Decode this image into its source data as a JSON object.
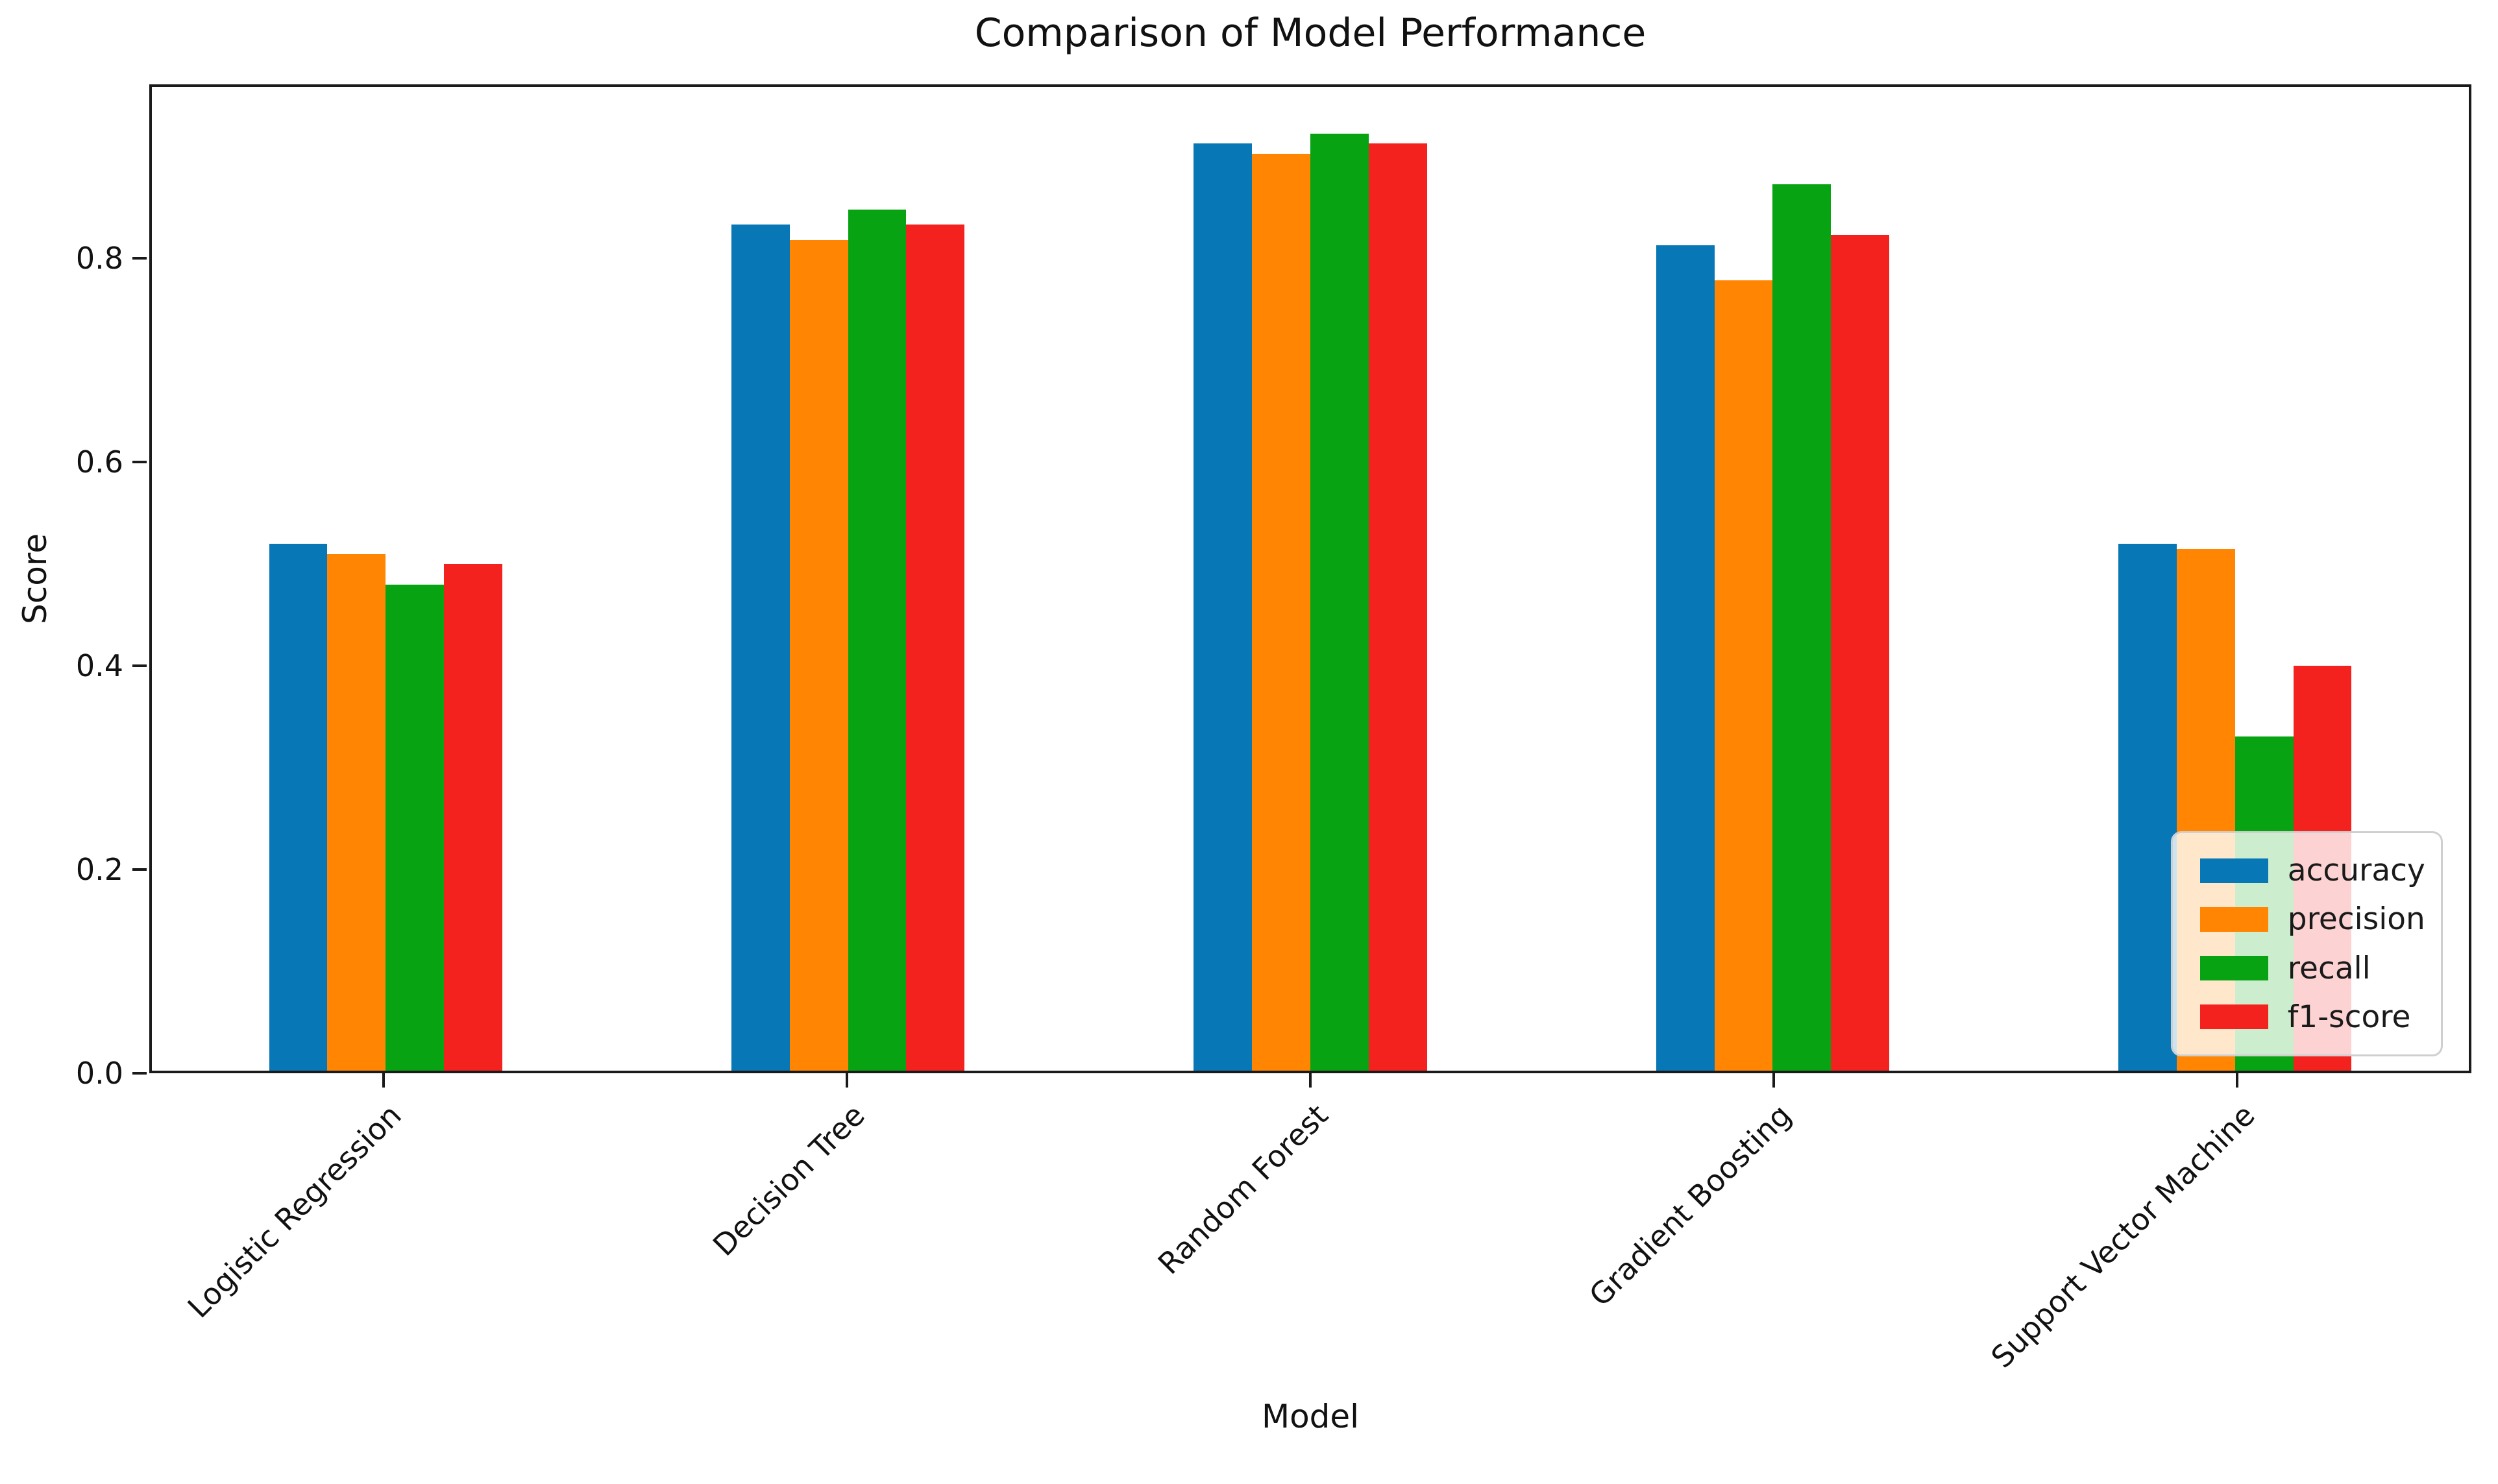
{
  "chart_data": {
    "type": "bar",
    "title": "Comparison of Model Performance",
    "xlabel": "Model",
    "ylabel": "Score",
    "categories": [
      "Logistic Regression",
      "Decision Tree",
      "Random Forest",
      "Gradient Boosting",
      "Support Vector Machine"
    ],
    "series": [
      {
        "name": "accuracy",
        "color": "#0777b6",
        "values": [
          0.52,
          0.835,
          0.915,
          0.815,
          0.52
        ]
      },
      {
        "name": "precision",
        "color": "#ff8502",
        "values": [
          0.51,
          0.82,
          0.905,
          0.78,
          0.515
        ]
      },
      {
        "name": "recall",
        "color": "#07a312",
        "values": [
          0.48,
          0.85,
          0.925,
          0.875,
          0.33
        ]
      },
      {
        "name": "f1-score",
        "color": "#f3221f",
        "values": [
          0.5,
          0.835,
          0.915,
          0.825,
          0.4
        ]
      }
    ],
    "yticks": [
      0.0,
      0.2,
      0.4,
      0.6,
      0.8
    ],
    "ytick_labels": [
      "0.0",
      "0.2",
      "0.4",
      "0.6",
      "0.8"
    ],
    "ylim": [
      0,
      0.971
    ],
    "grid": false,
    "legend": {
      "position": "lower right",
      "entries": [
        "accuracy",
        "precision",
        "recall",
        "f1-score"
      ]
    }
  }
}
